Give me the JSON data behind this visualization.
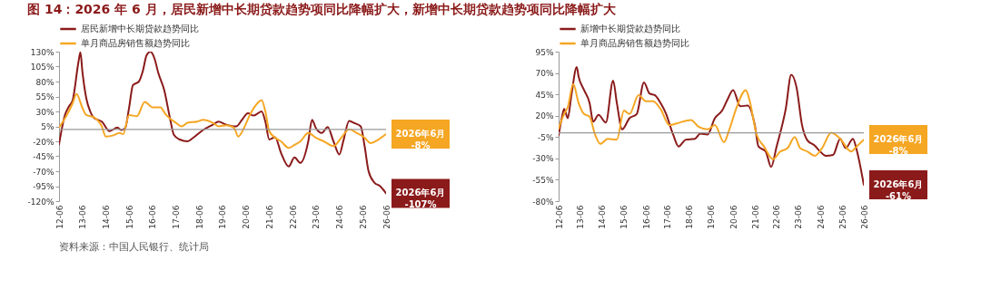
{
  "chart_data": [
    {
      "type": "line",
      "title": "图 14：2026 年 6 月，居民新增中长期贷款趋势项同比降幅扩大，新增中长期贷款趋势项同比降幅扩大",
      "xlim": [
        "2012-06",
        "2026-06"
      ],
      "xticks": [
        {
          "value": "2012-06",
          "label": "12-06"
        },
        {
          "value": "2013-06",
          "label": "13-06"
        },
        {
          "value": "2014-06",
          "label": "14-06"
        },
        {
          "value": "2015-06",
          "label": "15-06"
        },
        {
          "value": "2016-06",
          "label": "16-06"
        },
        {
          "value": "2017-06",
          "label": "17-06"
        },
        {
          "value": "2018-06",
          "label": "18-06"
        },
        {
          "value": "2019-06",
          "label": "19-06"
        },
        {
          "value": "2020-06",
          "label": "20-06"
        },
        {
          "value": "2021-06",
          "label": "21-06"
        },
        {
          "value": "2022-06",
          "label": "22-06"
        },
        {
          "value": "2023-06",
          "label": "23-06"
        },
        {
          "value": "2024-06",
          "label": "24-06"
        },
        {
          "value": "2025-06",
          "label": "25-06"
        },
        {
          "value": "2026-06",
          "label": "26-06"
        }
      ],
      "ylim": [
        -120,
        130
      ],
      "yticks": [
        {
          "value": 130,
          "label": "130%"
        },
        {
          "value": 105,
          "label": "105%"
        },
        {
          "value": 80,
          "label": "80%"
        },
        {
          "value": 55,
          "label": "55%"
        },
        {
          "value": 30,
          "label": "30%"
        },
        {
          "value": 5,
          "label": "5%"
        },
        {
          "value": -20,
          "label": "-20%"
        },
        {
          "value": -45,
          "label": "-45%"
        },
        {
          "value": -70,
          "label": "-70%"
        },
        {
          "value": -95,
          "label": "-95%"
        },
        {
          "value": -120,
          "label": "-120%"
        }
      ],
      "grid": false,
      "legend": "top",
      "marker": "none",
      "line_style": "solid",
      "ref_lines": [
        {
          "axis": "y",
          "value": 0,
          "color": "#999999"
        }
      ],
      "series": [
        {
          "name": "居民新增中长期贷款趋势同比",
          "color": "#8b1a1a",
          "x": [
            "2012-06",
            "2012-09",
            "2012-11",
            "2013-01",
            "2013-04",
            "2013-05",
            "2013-06",
            "2013-08",
            "2013-10",
            "2013-12",
            "2014-04",
            "2014-08",
            "2014-12",
            "2015-02",
            "2015-04",
            "2015-06",
            "2015-08",
            "2015-11",
            "2016-01",
            "2016-03",
            "2016-05",
            "2016-07",
            "2016-09",
            "2016-12",
            "2017-03",
            "2017-05",
            "2017-08",
            "2017-12",
            "2018-03",
            "2018-08",
            "2019-01",
            "2019-04",
            "2019-07",
            "2019-10",
            "2020-01",
            "2020-04",
            "2020-07",
            "2020-10",
            "2021-02",
            "2021-04",
            "2021-06",
            "2021-09",
            "2021-12",
            "2022-04",
            "2022-07",
            "2022-10",
            "2023-02",
            "2023-04",
            "2023-06",
            "2023-09",
            "2023-12",
            "2024-03",
            "2024-06",
            "2024-08",
            "2024-11",
            "2025-02",
            "2025-05",
            "2025-07",
            "2025-09",
            "2025-12",
            "2026-03",
            "2026-06"
          ],
          "values": [
            -25,
            24,
            38,
            49,
            113,
            129,
            97,
            52,
            30,
            19,
            13,
            -3,
            3,
            -1,
            2,
            36,
            74,
            80,
            97,
            124,
            130,
            119,
            94,
            66,
            19,
            -9,
            -17,
            -20,
            -14,
            -1,
            8,
            13,
            9,
            6,
            5,
            16,
            27,
            23,
            30,
            13,
            -17,
            -13,
            -39,
            -62,
            -47,
            -56,
            -20,
            16,
            2,
            -6,
            4,
            -20,
            -42,
            -20,
            14,
            10,
            5,
            -28,
            -70,
            -89,
            -95,
            -107
          ]
        },
        {
          "name": "单月商品房销售额趋势同比",
          "color": "#f5a623",
          "x": [
            "2012-06",
            "2012-10",
            "2013-01",
            "2013-03",
            "2013-06",
            "2013-08",
            "2013-12",
            "2014-04",
            "2014-06",
            "2014-10",
            "2015-01",
            "2015-03",
            "2015-06",
            "2015-10",
            "2016-02",
            "2016-06",
            "2016-10",
            "2017-01",
            "2017-06",
            "2017-09",
            "2017-12",
            "2018-05",
            "2018-08",
            "2019-01",
            "2019-04",
            "2019-08",
            "2019-12",
            "2020-02",
            "2020-05",
            "2020-08",
            "2020-12",
            "2021-02",
            "2021-04",
            "2021-06",
            "2021-09",
            "2021-12",
            "2022-04",
            "2022-07",
            "2022-10",
            "2023-02",
            "2023-06",
            "2023-10",
            "2024-03",
            "2024-07",
            "2024-11",
            "2025-03",
            "2025-07",
            "2025-10",
            "2026-02",
            "2026-06"
          ],
          "values": [
            3,
            24,
            44,
            59,
            36,
            24,
            20,
            5,
            -12,
            -10,
            -6,
            -8,
            24,
            22,
            46,
            37,
            37,
            24,
            11,
            5,
            11,
            13,
            16,
            11,
            5,
            7,
            2,
            -12,
            2,
            24,
            44,
            49,
            30,
            -3,
            -14,
            -20,
            -31,
            -26,
            -20,
            -6,
            -14,
            -20,
            -28,
            -14,
            0,
            -6,
            -14,
            -23,
            -17,
            -8
          ]
        }
      ],
      "annotations": [
        {
          "text": "2026年6月\n-107%",
          "x": "2026-06",
          "y": -107
        },
        {
          "text": "2026年6月\n-8%",
          "x": "2026-06",
          "y": -8
        },
        "资料来源：中国人民银行、统计局"
      ]
    },
    {
      "type": "line",
      "xlim": [
        "2012-06",
        "2026-06"
      ],
      "xticks": [
        {
          "value": "2012-06",
          "label": "12-06"
        },
        {
          "value": "2013-06",
          "label": "13-06"
        },
        {
          "value": "2014-06",
          "label": "14-06"
        },
        {
          "value": "2015-06",
          "label": "15-06"
        },
        {
          "value": "2016-06",
          "label": "16-06"
        },
        {
          "value": "2017-06",
          "label": "17-06"
        },
        {
          "value": "2018-06",
          "label": "18-06"
        },
        {
          "value": "2019-06",
          "label": "19-06"
        },
        {
          "value": "2020-06",
          "label": "20-06"
        },
        {
          "value": "2021-06",
          "label": "21-06"
        },
        {
          "value": "2022-06",
          "label": "22-06"
        },
        {
          "value": "2023-06",
          "label": "23-06"
        },
        {
          "value": "2024-06",
          "label": "24-06"
        },
        {
          "value": "2025-06",
          "label": "25-06"
        },
        {
          "value": "2026-06",
          "label": "26-06"
        }
      ],
      "ylim": [
        -80,
        95
      ],
      "yticks": [
        {
          "value": 95,
          "label": "95%"
        },
        {
          "value": 70,
          "label": "70%"
        },
        {
          "value": 45,
          "label": "45%"
        },
        {
          "value": 20,
          "label": "20%"
        },
        {
          "value": -5,
          "label": "-5%"
        },
        {
          "value": -30,
          "label": "-30%"
        },
        {
          "value": -55,
          "label": "-55%"
        },
        {
          "value": -80,
          "label": "-80%"
        }
      ],
      "grid": false,
      "legend": "top",
      "marker": "none",
      "line_style": "solid",
      "ref_lines": [
        {
          "axis": "y",
          "value": 0,
          "color": "#999999"
        }
      ],
      "series": [
        {
          "name": "新增中长期贷款趋势同比",
          "color": "#8b1a1a",
          "x": [
            "2012-06",
            "2012-08",
            "2012-09",
            "2012-11",
            "2013-01",
            "2013-04",
            "2013-05",
            "2013-08",
            "2013-11",
            "2014-01",
            "2014-04",
            "2014-08",
            "2014-12",
            "2015-02",
            "2015-05",
            "2015-09",
            "2016-01",
            "2016-05",
            "2016-08",
            "2016-11",
            "2017-02",
            "2017-05",
            "2017-09",
            "2017-12",
            "2018-04",
            "2018-09",
            "2018-12",
            "2019-04",
            "2019-08",
            "2019-12",
            "2020-03",
            "2020-06",
            "2020-10",
            "2021-02",
            "2021-06",
            "2021-08",
            "2021-12",
            "2022-03",
            "2022-06",
            "2022-11",
            "2023-02",
            "2023-05",
            "2023-08",
            "2023-11",
            "2024-03",
            "2024-06",
            "2024-09",
            "2025-01",
            "2025-05",
            "2025-08",
            "2025-12",
            "2026-02",
            "2026-06"
          ],
          "values": [
            -3,
            20,
            28,
            17,
            44,
            77,
            66,
            50,
            35,
            13,
            21,
            12,
            61,
            35,
            4,
            17,
            22,
            59,
            46,
            44,
            35,
            23,
            -2,
            -16,
            -8,
            -7,
            -1,
            -2,
            17,
            26,
            39,
            50,
            31,
            32,
            9,
            -16,
            -22,
            -40,
            -16,
            28,
            68,
            53,
            9,
            -9,
            -15,
            -22,
            -27,
            -26,
            -7,
            -18,
            -7,
            -20,
            -61
          ]
        },
        {
          "name": "单月商品房销售额趋势同比",
          "color": "#f5a623",
          "x": [
            "2012-06",
            "2012-09",
            "2012-11",
            "2013-02",
            "2013-05",
            "2013-08",
            "2013-11",
            "2014-02",
            "2014-05",
            "2014-09",
            "2015-02",
            "2015-06",
            "2015-09",
            "2016-02",
            "2016-06",
            "2016-10",
            "2017-02",
            "2017-07",
            "2017-11",
            "2018-07",
            "2018-11",
            "2019-04",
            "2019-08",
            "2020-01",
            "2020-04",
            "2020-08",
            "2021-01",
            "2021-03",
            "2021-07",
            "2021-11",
            "2022-04",
            "2022-08",
            "2022-12",
            "2023-04",
            "2023-07",
            "2023-11",
            "2024-03",
            "2024-07",
            "2024-12",
            "2025-05",
            "2025-11",
            "2026-02",
            "2026-06"
          ],
          "values": [
            5,
            22,
            30,
            57,
            35,
            22,
            19,
            -2,
            -13,
            -7,
            -8,
            26,
            22,
            44,
            37,
            37,
            28,
            9,
            11,
            15,
            7,
            4,
            9,
            -11,
            4,
            30,
            50,
            39,
            -2,
            -16,
            -31,
            -22,
            -18,
            -5,
            -18,
            -22,
            -27,
            -18,
            0,
            -7,
            -22,
            -16,
            -8
          ]
        }
      ],
      "annotations": [
        {
          "text": "2026年6月\n-61%",
          "x": "2026-06",
          "y": -61
        },
        {
          "text": "2026年6月\n-8%",
          "x": "2026-06",
          "y": -8
        }
      ]
    }
  ]
}
